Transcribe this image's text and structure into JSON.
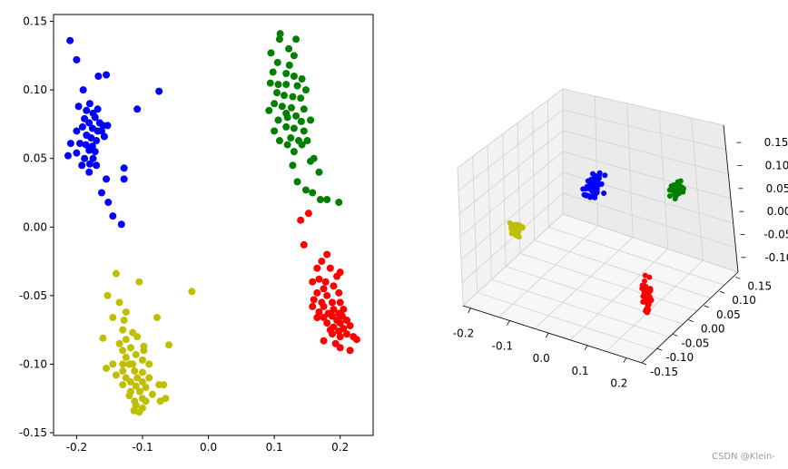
{
  "watermark": "CSDN @Klein-",
  "chart_data": [
    {
      "type": "scatter",
      "xlim": [
        -0.235,
        0.25
      ],
      "ylim": [
        -0.152,
        0.155
      ],
      "xticks": [
        "-0.2",
        "-0.1",
        "0.0",
        "0.1",
        "0.2"
      ],
      "yticks": [
        "0.15",
        "0.10",
        "0.05",
        "0.00",
        "-0.05",
        "-0.10",
        "-0.15"
      ],
      "series": [
        {
          "color": "#0000ff",
          "points": [
            [
              -0.21,
              0.136
            ],
            [
              -0.2,
              0.122
            ],
            [
              -0.167,
              0.11
            ],
            [
              -0.155,
              0.111
            ],
            [
              -0.19,
              0.1
            ],
            [
              -0.18,
              0.09
            ],
            [
              -0.197,
              0.088
            ],
            [
              -0.185,
              0.085
            ],
            [
              -0.175,
              0.083
            ],
            [
              -0.172,
              0.08
            ],
            [
              -0.188,
              0.079
            ],
            [
              -0.181,
              0.076
            ],
            [
              -0.165,
              0.076
            ],
            [
              -0.16,
              0.074
            ],
            [
              -0.153,
              0.074
            ],
            [
              -0.191,
              0.073
            ],
            [
              -0.176,
              0.072
            ],
            [
              -0.168,
              0.07
            ],
            [
              -0.2,
              0.07
            ],
            [
              -0.185,
              0.067
            ],
            [
              -0.178,
              0.065
            ],
            [
              -0.158,
              0.066
            ],
            [
              -0.17,
              0.063
            ],
            [
              -0.195,
              0.061
            ],
            [
              -0.186,
              0.06
            ],
            [
              -0.176,
              0.059
            ],
            [
              -0.209,
              0.061
            ],
            [
              -0.181,
              0.056
            ],
            [
              -0.172,
              0.055
            ],
            [
              -0.2,
              0.054
            ],
            [
              -0.213,
              0.052
            ],
            [
              -0.188,
              0.05
            ],
            [
              -0.175,
              0.05
            ],
            [
              -0.192,
              0.045
            ],
            [
              -0.17,
              0.045
            ],
            [
              -0.181,
              0.04
            ],
            [
              -0.155,
              0.035
            ],
            [
              -0.128,
              0.043
            ],
            [
              -0.128,
              0.035
            ],
            [
              -0.162,
              0.025
            ],
            [
              -0.18,
              0.046
            ],
            [
              -0.152,
              0.018
            ],
            [
              -0.145,
              0.008
            ],
            [
              -0.132,
              0.002
            ],
            [
              -0.075,
              0.099
            ],
            [
              -0.108,
              0.086
            ],
            [
              -0.162,
              0.07
            ],
            [
              -0.168,
              0.086
            ]
          ]
        },
        {
          "color": "#008000",
          "points": [
            [
              0.108,
              0.137
            ],
            [
              0.109,
              0.141
            ],
            [
              0.133,
              0.137
            ],
            [
              0.122,
              0.13
            ],
            [
              0.095,
              0.127
            ],
            [
              0.123,
              0.118
            ],
            [
              0.13,
              0.125
            ],
            [
              0.105,
              0.12
            ],
            [
              0.098,
              0.113
            ],
            [
              0.118,
              0.112
            ],
            [
              0.13,
              0.11
            ],
            [
              0.142,
              0.108
            ],
            [
              0.094,
              0.105
            ],
            [
              0.106,
              0.104
            ],
            [
              0.118,
              0.104
            ],
            [
              0.135,
              0.103
            ],
            [
              0.148,
              0.1
            ],
            [
              0.104,
              0.098
            ],
            [
              0.115,
              0.096
            ],
            [
              0.128,
              0.095
            ],
            [
              0.14,
              0.094
            ],
            [
              0.1,
              0.09
            ],
            [
              0.112,
              0.088
            ],
            [
              0.126,
              0.087
            ],
            [
              0.145,
              0.086
            ],
            [
              0.092,
              0.085
            ],
            [
              0.118,
              0.083
            ],
            [
              0.133,
              0.081
            ],
            [
              0.12,
              0.08
            ],
            [
              0.106,
              0.078
            ],
            [
              0.141,
              0.077
            ],
            [
              0.155,
              0.078
            ],
            [
              0.118,
              0.073
            ],
            [
              0.13,
              0.072
            ],
            [
              0.145,
              0.07
            ],
            [
              0.125,
              0.065
            ],
            [
              0.137,
              0.063
            ],
            [
              0.108,
              0.063
            ],
            [
              0.12,
              0.06
            ],
            [
              0.15,
              0.063
            ],
            [
              0.142,
              0.06
            ],
            [
              0.13,
              0.055
            ],
            [
              0.16,
              0.05
            ],
            [
              0.155,
              0.048
            ],
            [
              0.128,
              0.045
            ],
            [
              0.168,
              0.04
            ],
            [
              0.135,
              0.033
            ],
            [
              0.158,
              0.025
            ],
            [
              0.148,
              0.027
            ],
            [
              0.18,
              0.02
            ],
            [
              0.17,
              0.02
            ],
            [
              0.198,
              0.018
            ],
            [
              0.1,
              0.07
            ]
          ]
        },
        {
          "color": "#ff0000",
          "points": [
            [
              0.14,
              0.005
            ],
            [
              0.152,
              0.01
            ],
            [
              0.145,
              -0.013
            ],
            [
              0.18,
              -0.02
            ],
            [
              0.172,
              -0.025
            ],
            [
              0.165,
              -0.03
            ],
            [
              0.185,
              -0.03
            ],
            [
              0.2,
              -0.033
            ],
            [
              0.195,
              -0.036
            ],
            [
              0.168,
              -0.038
            ],
            [
              0.178,
              -0.04
            ],
            [
              0.158,
              -0.04
            ],
            [
              0.175,
              -0.045
            ],
            [
              0.19,
              -0.043
            ],
            [
              0.165,
              -0.048
            ],
            [
              0.18,
              -0.05
            ],
            [
              0.198,
              -0.048
            ],
            [
              0.16,
              -0.053
            ],
            [
              0.172,
              -0.055
            ],
            [
              0.188,
              -0.055
            ],
            [
              0.2,
              -0.055
            ],
            [
              0.175,
              -0.058
            ],
            [
              0.158,
              -0.058
            ],
            [
              0.19,
              -0.06
            ],
            [
              0.205,
              -0.06
            ],
            [
              0.168,
              -0.062
            ],
            [
              0.182,
              -0.063
            ],
            [
              0.198,
              -0.063
            ],
            [
              0.188,
              -0.065
            ],
            [
              0.203,
              -0.065
            ],
            [
              0.175,
              -0.066
            ],
            [
              0.195,
              -0.068
            ],
            [
              0.21,
              -0.068
            ],
            [
              0.18,
              -0.07
            ],
            [
              0.2,
              -0.07
            ],
            [
              0.19,
              -0.073
            ],
            [
              0.205,
              -0.074
            ],
            [
              0.215,
              -0.072
            ],
            [
              0.185,
              -0.075
            ],
            [
              0.198,
              -0.076
            ],
            [
              0.21,
              -0.078
            ],
            [
              0.2,
              -0.08
            ],
            [
              0.22,
              -0.08
            ],
            [
              0.188,
              -0.078
            ],
            [
              0.175,
              -0.083
            ],
            [
              0.193,
              -0.085
            ],
            [
              0.2,
              -0.088
            ],
            [
              0.215,
              -0.09
            ],
            [
              0.225,
              -0.082
            ],
            [
              0.165,
              -0.066
            ]
          ]
        },
        {
          "color": "#bfbf00",
          "points": [
            [
              -0.14,
              -0.034
            ],
            [
              -0.105,
              -0.04
            ],
            [
              -0.025,
              -0.047
            ],
            [
              -0.153,
              -0.05
            ],
            [
              -0.135,
              -0.055
            ],
            [
              -0.125,
              -0.062
            ],
            [
              -0.145,
              -0.066
            ],
            [
              -0.128,
              -0.068
            ],
            [
              -0.078,
              -0.066
            ],
            [
              -0.13,
              -0.075
            ],
            [
              -0.115,
              -0.077
            ],
            [
              -0.16,
              -0.081
            ],
            [
              -0.125,
              -0.082
            ],
            [
              -0.108,
              -0.08
            ],
            [
              -0.135,
              -0.085
            ],
            [
              -0.098,
              -0.087
            ],
            [
              -0.118,
              -0.088
            ],
            [
              -0.13,
              -0.09
            ],
            [
              -0.06,
              -0.086
            ],
            [
              -0.11,
              -0.093
            ],
            [
              -0.125,
              -0.095
            ],
            [
              -0.1,
              -0.097
            ],
            [
              -0.145,
              -0.1
            ],
            [
              -0.13,
              -0.1
            ],
            [
              -0.115,
              -0.1
            ],
            [
              -0.09,
              -0.1
            ],
            [
              -0.155,
              -0.103
            ],
            [
              -0.13,
              -0.105
            ],
            [
              -0.112,
              -0.105
            ],
            [
              -0.1,
              -0.106
            ],
            [
              -0.14,
              -0.108
            ],
            [
              -0.125,
              -0.11
            ],
            [
              -0.108,
              -0.11
            ],
            [
              -0.09,
              -0.11
            ],
            [
              -0.118,
              -0.113
            ],
            [
              -0.1,
              -0.113
            ],
            [
              -0.13,
              -0.115
            ],
            [
              -0.11,
              -0.116
            ],
            [
              -0.095,
              -0.117
            ],
            [
              -0.075,
              -0.115
            ],
            [
              -0.118,
              -0.12
            ],
            [
              -0.104,
              -0.12
            ],
            [
              -0.12,
              -0.123
            ],
            [
              -0.1,
              -0.125
            ],
            [
              -0.085,
              -0.122
            ],
            [
              -0.112,
              -0.127
            ],
            [
              -0.095,
              -0.127
            ],
            [
              -0.073,
              -0.127
            ],
            [
              -0.11,
              -0.13
            ],
            [
              -0.1,
              -0.132
            ],
            [
              -0.065,
              -0.125
            ],
            [
              -0.113,
              -0.134
            ],
            [
              -0.105,
              -0.135
            ],
            [
              -0.12,
              -0.1
            ],
            [
              -0.098,
              -0.09
            ],
            [
              -0.068,
              -0.115
            ]
          ]
        }
      ]
    },
    {
      "type": "scatter3d",
      "xlim": [
        -0.22,
        0.24
      ],
      "ylim": [
        -0.15,
        0.17
      ],
      "zlim": [
        -0.13,
        0.17
      ],
      "xticks": [
        "-0.2",
        "-0.1",
        "0.0",
        "0.1",
        "0.2"
      ],
      "yticks": [
        "0.15",
        "0.10",
        "0.05",
        "0.00",
        "-0.05",
        "-0.10",
        "-0.15"
      ],
      "zticks": [
        "0.15",
        "0.10",
        "0.05",
        "0.00",
        "-0.05",
        "-0.10"
      ],
      "series": [
        {
          "color": "#0000ff",
          "n": 60,
          "center": [
            -0.05,
            0.07,
            0.04
          ],
          "spread": [
            0.025,
            0.03,
            0.03
          ]
        },
        {
          "color": "#008000",
          "n": 35,
          "center": [
            0.12,
            0.12,
            0.05
          ],
          "spread": [
            0.02,
            0.02,
            0.03
          ]
        },
        {
          "color": "#ff0000",
          "n": 60,
          "center": [
            0.16,
            -0.03,
            -0.08
          ],
          "spread": [
            0.012,
            0.012,
            0.05
          ]
        },
        {
          "color": "#bfbf00",
          "n": 30,
          "center": [
            -0.15,
            -0.06,
            0.0
          ],
          "spread": [
            0.02,
            0.015,
            0.02
          ]
        }
      ]
    }
  ]
}
